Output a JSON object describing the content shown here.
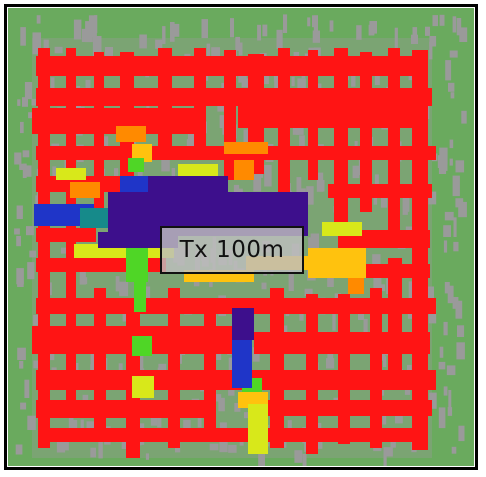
{
  "map": {
    "transmitter_label": "Tx 100m",
    "colors": {
      "background": "#6aaa5e",
      "building": "#9a9a9a",
      "very_strong": "#3d0f8c",
      "strong": "#1f35c8",
      "medium_strong": "#4fd626",
      "medium": "#d8e81a",
      "medium_weak": "#ffc20e",
      "weak": "#ff8a00",
      "very_weak": "#ff1414"
    }
  }
}
